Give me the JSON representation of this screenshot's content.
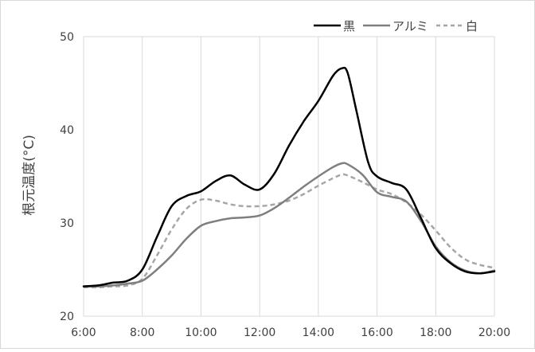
{
  "chart_data": {
    "type": "line",
    "title": "",
    "xlabel": "",
    "ylabel": "根元温度(°C)",
    "x_ticks": [
      "6:00",
      "8:00",
      "10:00",
      "12:00",
      "14:00",
      "16:00",
      "18:00",
      "20:00"
    ],
    "x_range_hours": [
      6,
      20
    ],
    "ylim": [
      20,
      50
    ],
    "y_ticks": [
      20,
      30,
      40,
      50
    ],
    "grid": "vertical",
    "legend_position": "top-right",
    "series": [
      {
        "name": "黒",
        "color": "#000000",
        "style": "solid",
        "points": [
          [
            6.0,
            23.2
          ],
          [
            6.5,
            23.3
          ],
          [
            7.0,
            23.6
          ],
          [
            7.5,
            23.8
          ],
          [
            8.0,
            25.0
          ],
          [
            8.5,
            28.5
          ],
          [
            9.0,
            31.8
          ],
          [
            9.5,
            32.9
          ],
          [
            10.0,
            33.4
          ],
          [
            10.5,
            34.5
          ],
          [
            11.0,
            35.1
          ],
          [
            11.5,
            34.1
          ],
          [
            12.0,
            33.6
          ],
          [
            12.5,
            35.3
          ],
          [
            13.0,
            38.3
          ],
          [
            13.5,
            40.9
          ],
          [
            14.0,
            43.1
          ],
          [
            14.5,
            45.8
          ],
          [
            14.8,
            46.6
          ],
          [
            15.0,
            46.1
          ],
          [
            15.3,
            42.0
          ],
          [
            15.7,
            36.5
          ],
          [
            16.0,
            35.0
          ],
          [
            16.5,
            34.3
          ],
          [
            17.0,
            33.6
          ],
          [
            17.5,
            30.5
          ],
          [
            18.0,
            27.3
          ],
          [
            18.5,
            25.7
          ],
          [
            19.0,
            24.8
          ],
          [
            19.5,
            24.6
          ],
          [
            20.0,
            24.8
          ]
        ]
      },
      {
        "name": "アルミ",
        "color": "#7f7f7f",
        "style": "solid",
        "points": [
          [
            6.0,
            23.2
          ],
          [
            6.5,
            23.2
          ],
          [
            7.0,
            23.3
          ],
          [
            7.5,
            23.5
          ],
          [
            8.0,
            23.8
          ],
          [
            8.5,
            25.0
          ],
          [
            9.0,
            26.5
          ],
          [
            9.5,
            28.3
          ],
          [
            10.0,
            29.7
          ],
          [
            10.5,
            30.2
          ],
          [
            11.0,
            30.5
          ],
          [
            11.5,
            30.6
          ],
          [
            12.0,
            30.8
          ],
          [
            12.5,
            31.6
          ],
          [
            13.0,
            32.7
          ],
          [
            13.5,
            33.9
          ],
          [
            14.0,
            35.0
          ],
          [
            14.5,
            36.0
          ],
          [
            14.8,
            36.4
          ],
          [
            15.0,
            36.3
          ],
          [
            15.5,
            35.2
          ],
          [
            16.0,
            33.3
          ],
          [
            16.5,
            32.8
          ],
          [
            17.0,
            32.3
          ],
          [
            17.5,
            30.2
          ],
          [
            18.0,
            27.5
          ],
          [
            18.5,
            25.8
          ],
          [
            19.0,
            24.9
          ],
          [
            19.5,
            24.6
          ],
          [
            20.0,
            24.9
          ]
        ]
      },
      {
        "name": "白",
        "color": "#a6a6a6",
        "style": "dashed",
        "points": [
          [
            6.0,
            23.1
          ],
          [
            6.5,
            23.1
          ],
          [
            7.0,
            23.2
          ],
          [
            7.5,
            23.3
          ],
          [
            8.0,
            24.0
          ],
          [
            8.5,
            26.5
          ],
          [
            9.0,
            29.3
          ],
          [
            9.5,
            31.5
          ],
          [
            10.0,
            32.5
          ],
          [
            10.5,
            32.4
          ],
          [
            11.0,
            32.0
          ],
          [
            11.5,
            31.8
          ],
          [
            12.0,
            31.8
          ],
          [
            12.5,
            32.0
          ],
          [
            13.0,
            32.4
          ],
          [
            13.5,
            33.1
          ],
          [
            14.0,
            34.0
          ],
          [
            14.5,
            34.8
          ],
          [
            14.8,
            35.2
          ],
          [
            15.0,
            35.1
          ],
          [
            15.5,
            34.4
          ],
          [
            16.0,
            33.6
          ],
          [
            16.5,
            33.1
          ],
          [
            17.0,
            32.2
          ],
          [
            17.5,
            30.9
          ],
          [
            18.0,
            29.2
          ],
          [
            18.5,
            27.4
          ],
          [
            19.0,
            26.1
          ],
          [
            19.5,
            25.5
          ],
          [
            20.0,
            25.2
          ]
        ]
      }
    ]
  }
}
